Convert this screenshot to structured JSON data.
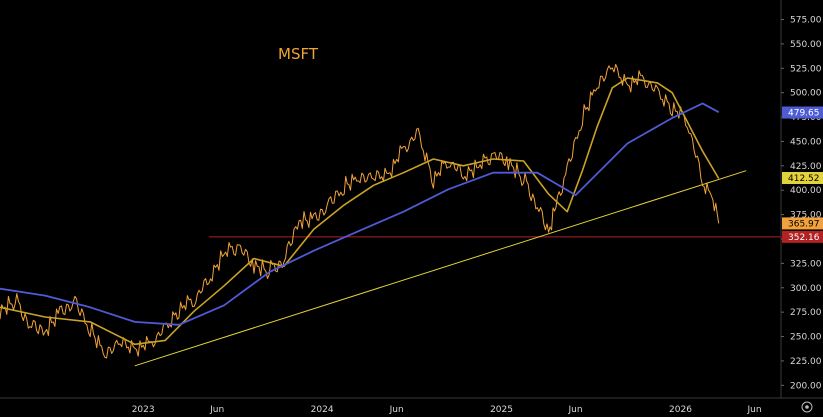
{
  "chart_data": {
    "type": "line",
    "title": "MSFT",
    "yticks": [
      "575.00",
      "550.00",
      "525.00",
      "500.00",
      "475.00",
      "450.00",
      "425.00",
      "400.00",
      "375.00",
      "350.00",
      "325.00",
      "300.00",
      "275.00",
      "250.00",
      "225.00",
      "200.00"
    ],
    "ytick_values": [
      575,
      550,
      525,
      500,
      475,
      450,
      425,
      400,
      375,
      350,
      325,
      300,
      275,
      250,
      225,
      200
    ],
    "xticks": [
      "2023",
      "Jun",
      "2024",
      "Jun",
      "2025",
      "Jun",
      "2026",
      "Jun"
    ],
    "xtick_dates": [
      "2023-01-01",
      "2023-06-01",
      "2024-01-01",
      "2024-06-01",
      "2025-01-01",
      "2025-06-01",
      "2026-01-01",
      "2026-06-01"
    ],
    "ylim": [
      187,
      595
    ],
    "xlim": [
      "2022-03-15",
      "2026-07-25"
    ],
    "colors": {
      "price": "#f2a23a",
      "ma_fast": "#c9a227",
      "ma_slow": "#4f5bd5",
      "trend": "#e3d33a",
      "support": "#b22222"
    },
    "price_labels": [
      {
        "text": "479.65",
        "value": 479.65,
        "bg": "#4f5bd5",
        "fg": "#ffffff"
      },
      {
        "text": "412.52",
        "value": 412.52,
        "bg": "#e3d33a",
        "fg": "#000000"
      },
      {
        "text": "365.97",
        "value": 365.97,
        "bg": "#f2a23a",
        "fg": "#000000"
      },
      {
        "text": "352.16",
        "value": 352.16,
        "bg": "#b22222",
        "fg": "#ffffff"
      }
    ],
    "support_level": 352.16,
    "support_start": "2023-05-15",
    "trendline": [
      {
        "date": "2022-12-15",
        "value": 220
      },
      {
        "date": "2026-05-15",
        "value": 420
      }
    ],
    "series": [
      {
        "name": "Price",
        "kind": "price",
        "x": [
          "2022-03-15",
          "2022-04-15",
          "2022-05-15",
          "2022-06-15",
          "2022-07-15",
          "2022-08-15",
          "2022-09-15",
          "2022-10-15",
          "2022-11-15",
          "2022-12-15",
          "2023-01-15",
          "2023-02-15",
          "2023-03-15",
          "2023-04-15",
          "2023-05-15",
          "2023-06-15",
          "2023-07-15",
          "2023-08-15",
          "2023-09-15",
          "2023-10-15",
          "2023-11-15",
          "2023-12-15",
          "2024-01-15",
          "2024-02-15",
          "2024-03-15",
          "2024-04-15",
          "2024-05-15",
          "2024-06-15",
          "2024-07-15",
          "2024-08-15",
          "2024-09-15",
          "2024-10-15",
          "2024-11-15",
          "2024-12-15",
          "2025-01-15",
          "2025-02-15",
          "2025-03-15",
          "2025-04-07",
          "2025-04-25",
          "2025-05-15",
          "2025-06-15",
          "2025-07-15",
          "2025-08-15",
          "2025-09-15",
          "2025-10-15",
          "2025-11-15",
          "2025-12-15",
          "2026-01-15",
          "2026-02-15",
          "2026-03-05",
          "2026-03-20"
        ],
        "values": [
          275,
          288,
          262,
          254,
          277,
          285,
          258,
          234,
          245,
          238,
          242,
          258,
          278,
          287,
          308,
          335,
          342,
          322,
          318,
          328,
          368,
          372,
          385,
          404,
          415,
          414,
          417,
          442,
          458,
          411,
          430,
          415,
          424,
          436,
          428,
          412,
          384,
          356,
          390,
          420,
          475,
          510,
          528,
          508,
          515,
          500,
          485,
          470,
          408,
          395,
          366
        ]
      },
      {
        "name": "Fast MA",
        "kind": "ma_fast",
        "x": [
          "2022-03-15",
          "2022-06-15",
          "2022-09-15",
          "2022-12-15",
          "2023-02-15",
          "2023-04-15",
          "2023-06-15",
          "2023-08-15",
          "2023-10-15",
          "2023-12-15",
          "2024-02-15",
          "2024-04-15",
          "2024-06-15",
          "2024-08-15",
          "2024-10-15",
          "2024-12-15",
          "2025-02-15",
          "2025-04-07",
          "2025-05-15",
          "2025-06-15",
          "2025-07-15",
          "2025-08-15",
          "2025-09-15",
          "2025-11-15",
          "2025-12-15",
          "2026-01-15",
          "2026-02-15",
          "2026-03-20"
        ],
        "values": [
          280,
          270,
          265,
          242,
          246,
          276,
          302,
          330,
          322,
          360,
          385,
          405,
          418,
          432,
          425,
          432,
          430,
          396,
          378,
          420,
          465,
          505,
          515,
          510,
          500,
          470,
          440,
          412
        ]
      },
      {
        "name": "Slow MA",
        "kind": "ma_slow",
        "x": [
          "2022-03-15",
          "2022-06-15",
          "2022-09-15",
          "2022-12-15",
          "2023-03-15",
          "2023-06-15",
          "2023-09-15",
          "2023-12-15",
          "2024-03-15",
          "2024-06-15",
          "2024-09-15",
          "2024-12-15",
          "2025-03-15",
          "2025-06-01",
          "2025-09-15",
          "2025-12-15",
          "2026-02-15",
          "2026-03-20"
        ],
        "values": [
          299,
          292,
          280,
          265,
          262,
          282,
          316,
          338,
          358,
          378,
          401,
          418,
          418,
          395,
          448,
          474,
          489,
          480
        ]
      }
    ]
  }
}
